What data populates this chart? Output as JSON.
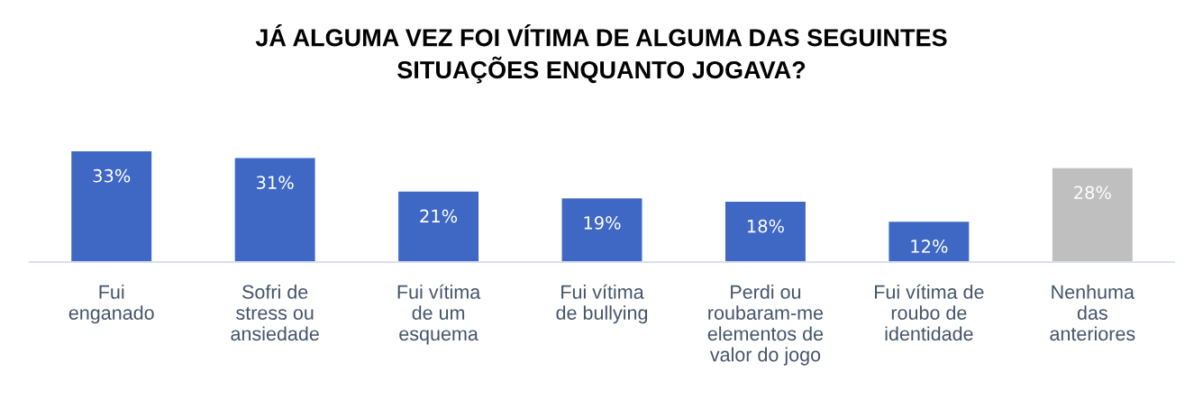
{
  "chart_data": {
    "type": "bar",
    "title": "JÁ ALGUMA VEZ FOI VÍTIMA DE ALGUMA DAS SEGUINTES\nSITUAÇÕES ENQUANTO JOGAVA?",
    "categories": [
      "Fui\nenganado",
      "Sofri de\nstress ou\nansiedade",
      "Fui vítima\nde um\nesquema",
      "Fui vítima\nde bullying",
      "Perdi ou\nroubaram-me\nelementos de\nvalor do jogo",
      "Fui vítima de\nroubo de\nidentidade",
      "Nenhuma\ndas\nanteriores"
    ],
    "values": [
      33,
      31,
      21,
      19,
      18,
      12,
      28
    ],
    "colors": [
      "#3f68c5",
      "#3f68c5",
      "#3f68c5",
      "#3f68c5",
      "#3f68c5",
      "#3f68c5",
      "#bfbfbf"
    ],
    "value_labels": [
      "33%",
      "31%",
      "21%",
      "19%",
      "18%",
      "12%",
      "28%"
    ],
    "grid": false,
    "legend": false
  }
}
